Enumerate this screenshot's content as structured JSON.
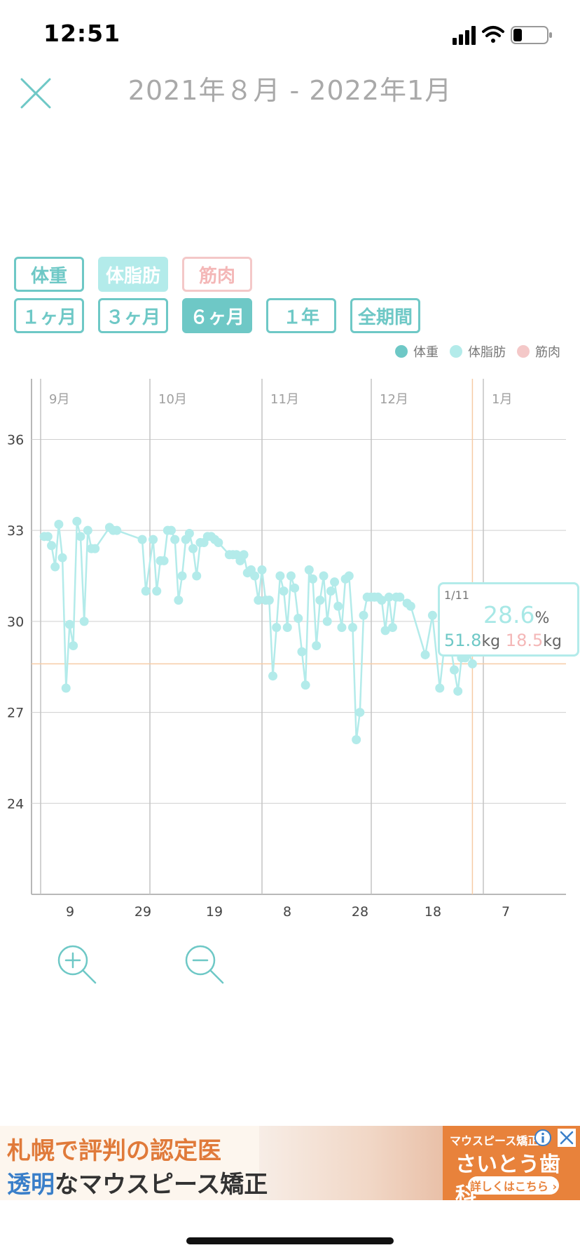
{
  "status": {
    "time": "12:51"
  },
  "header": {
    "title": "2021年８月 - 2022年1月"
  },
  "metric_buttons": [
    {
      "label": "体重"
    },
    {
      "label": "体脂肪"
    },
    {
      "label": "筋肉"
    }
  ],
  "range_buttons": [
    {
      "label": "１ヶ月"
    },
    {
      "label": "３ヶ月"
    },
    {
      "label": "６ヶ月",
      "selected": true
    },
    {
      "label": "１年"
    },
    {
      "label": "全期間"
    }
  ],
  "legend": [
    {
      "label": "体重",
      "color": "#6ec8c6"
    },
    {
      "label": "体脂肪",
      "color": "#b3ebea"
    },
    {
      "label": "筋肉",
      "color": "#f4c8c8"
    }
  ],
  "tooltip": {
    "date": "1/11",
    "fat": "28.6",
    "fat_unit": "%",
    "weight": "51.8",
    "weight_unit": "kg",
    "muscle": "18.5",
    "muscle_unit": "kg"
  },
  "chart_data": {
    "type": "line",
    "y_ticks": [
      "36",
      "33",
      "30",
      "27",
      "24"
    ],
    "x_ticks": [
      "9",
      "29",
      "19",
      "8",
      "28",
      "18",
      "7"
    ],
    "month_labels": [
      "9月",
      "10月",
      "11月",
      "12月",
      "1月"
    ],
    "ylim": [
      21,
      38
    ],
    "series": [
      {
        "color": "#b3ebea",
        "points": [
          [
            1,
            32.8
          ],
          [
            2,
            32.8
          ],
          [
            3,
            32.5
          ],
          [
            4,
            31.8
          ],
          [
            5,
            33.2
          ],
          [
            6,
            32.1
          ],
          [
            7,
            27.8
          ],
          [
            8,
            29.9
          ],
          [
            9,
            29.2
          ],
          [
            10,
            33.3
          ],
          [
            11,
            32.8
          ],
          [
            12,
            30.0
          ],
          [
            13,
            33.0
          ],
          [
            14,
            32.4
          ],
          [
            15,
            32.4
          ],
          [
            19,
            33.1
          ],
          [
            20,
            33.0
          ],
          [
            21,
            33.0
          ],
          [
            28,
            32.7
          ],
          [
            29,
            31.0
          ],
          [
            31,
            32.7
          ],
          [
            32,
            31.0
          ],
          [
            33,
            32.0
          ],
          [
            34,
            32.0
          ],
          [
            35,
            33.0
          ],
          [
            36,
            33.0
          ],
          [
            37,
            32.7
          ],
          [
            38,
            30.7
          ],
          [
            39,
            31.5
          ],
          [
            40,
            32.7
          ],
          [
            41,
            32.9
          ],
          [
            42,
            32.4
          ],
          [
            43,
            31.5
          ],
          [
            44,
            32.6
          ],
          [
            45,
            32.6
          ],
          [
            46,
            32.8
          ],
          [
            47,
            32.8
          ],
          [
            48,
            32.7
          ],
          [
            49,
            32.6
          ],
          [
            52,
            32.2
          ],
          [
            53,
            32.2
          ],
          [
            54,
            32.2
          ],
          [
            55,
            32.0
          ],
          [
            56,
            32.2
          ],
          [
            57,
            31.6
          ],
          [
            58,
            31.7
          ],
          [
            59,
            31.5
          ],
          [
            60,
            30.7
          ],
          [
            61,
            31.7
          ],
          [
            62,
            30.7
          ],
          [
            63,
            30.7
          ],
          [
            64,
            28.2
          ],
          [
            65,
            29.8
          ],
          [
            66,
            31.5
          ],
          [
            67,
            31.0
          ],
          [
            68,
            29.8
          ],
          [
            69,
            31.5
          ],
          [
            70,
            31.1
          ],
          [
            71,
            30.1
          ],
          [
            72,
            29.0
          ],
          [
            73,
            27.9
          ],
          [
            74,
            31.7
          ],
          [
            75,
            31.4
          ],
          [
            76,
            29.2
          ],
          [
            77,
            30.7
          ],
          [
            78,
            31.5
          ],
          [
            79,
            30.0
          ],
          [
            80,
            31.0
          ],
          [
            81,
            31.3
          ],
          [
            82,
            30.5
          ],
          [
            83,
            29.8
          ],
          [
            84,
            31.4
          ],
          [
            85,
            31.5
          ],
          [
            86,
            29.8
          ],
          [
            87,
            26.1
          ],
          [
            88,
            27.0
          ],
          [
            89,
            30.2
          ],
          [
            90,
            30.8
          ],
          [
            91,
            30.8
          ],
          [
            92,
            30.8
          ],
          [
            93,
            30.8
          ],
          [
            94,
            30.7
          ],
          [
            95,
            29.7
          ],
          [
            96,
            30.8
          ],
          [
            97,
            29.8
          ],
          [
            98,
            30.8
          ],
          [
            99,
            30.8
          ],
          [
            101,
            30.6
          ],
          [
            102,
            30.5
          ],
          [
            106,
            28.9
          ],
          [
            108,
            30.2
          ],
          [
            110,
            27.8
          ],
          [
            112,
            30.0
          ],
          [
            114,
            28.4
          ],
          [
            115,
            27.7
          ],
          [
            116,
            28.8
          ],
          [
            117,
            28.8
          ],
          [
            118,
            29.0
          ],
          [
            119,
            28.6
          ]
        ]
      }
    ],
    "reference_value": 28.6
  },
  "ad": {
    "line1": "札幌で評判の認定医",
    "line2_accent": "透明",
    "line2_rest": "なマウスピース矯正",
    "right_top": "マウスピース矯正",
    "right_name": "さいとう歯科",
    "right_cta": "詳しくはこちら ›"
  }
}
